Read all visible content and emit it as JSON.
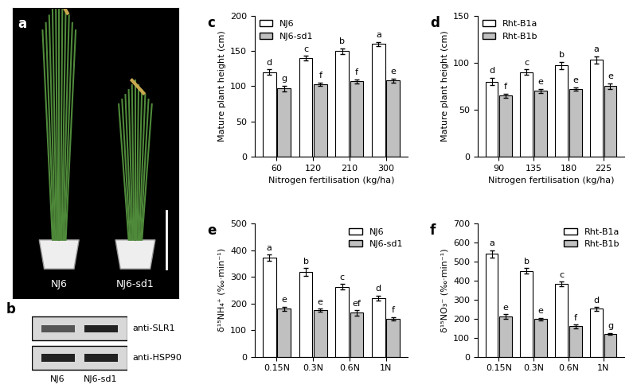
{
  "panels": {
    "a": {
      "panel": "a",
      "image_labels": [
        "NJ6",
        "NJ6-sd1"
      ]
    },
    "b": {
      "panel": "b",
      "blot_rows": [
        "anti-SLR1",
        "anti-HSP90"
      ],
      "lanes": [
        "NJ6",
        "NJ6-sd1"
      ]
    }
  },
  "chart_data": [
    {
      "type": "bar",
      "panel": "c",
      "x_label": "Nitrogen fertilisation (kg/ha)",
      "y_label": "Mature plant height (cm)",
      "categories": [
        "60",
        "120",
        "210",
        "300"
      ],
      "ylim": [
        0,
        200
      ],
      "yticks": [
        0,
        50,
        100,
        150,
        200
      ],
      "legend": "upper left",
      "series": [
        {
          "name": "NJ6",
          "color": "#ffffff",
          "values": [
            120,
            140,
            150,
            160
          ],
          "errors": [
            4,
            3,
            4,
            3
          ],
          "letters": [
            "d",
            "c",
            "b",
            "a"
          ]
        },
        {
          "name": "NJ6-sd1",
          "color": "#c0c0c0",
          "values": [
            97,
            103,
            107,
            108
          ],
          "errors": [
            4,
            2,
            3,
            3
          ],
          "letters": [
            "g",
            "f",
            "f",
            "e"
          ]
        }
      ]
    },
    {
      "type": "bar",
      "panel": "d",
      "x_label": "Nitrogen fertilisation (kg/ha)",
      "y_label": "Mature plant height (cm)",
      "categories": [
        "90",
        "135",
        "180",
        "225"
      ],
      "ylim": [
        0,
        150
      ],
      "yticks": [
        0,
        50,
        100,
        150
      ],
      "legend": "upper left",
      "series": [
        {
          "name": "Rht-B1a",
          "color": "#ffffff",
          "values": [
            80,
            90,
            97,
            103
          ],
          "errors": [
            4,
            3,
            4,
            4
          ],
          "letters": [
            "d",
            "c",
            "b",
            "a"
          ]
        },
        {
          "name": "Rht-B1b",
          "color": "#c0c0c0",
          "values": [
            65,
            70,
            72,
            75
          ],
          "errors": [
            2,
            2,
            2,
            3
          ],
          "letters": [
            "f",
            "e",
            "e",
            "e"
          ]
        }
      ]
    },
    {
      "type": "bar",
      "panel": "e",
      "y_label": "δ¹⁵NH₄⁺ (‰·min⁻¹)",
      "categories": [
        "0.15N",
        "0.3N",
        "0.6N",
        "1N"
      ],
      "ylim": [
        0,
        500
      ],
      "yticks": [
        0,
        100,
        200,
        300,
        400,
        500
      ],
      "legend": "upper right",
      "series": [
        {
          "name": "NJ6",
          "color": "#ffffff",
          "values": [
            372,
            318,
            262,
            220
          ],
          "errors": [
            12,
            15,
            10,
            10
          ],
          "letters": [
            "a",
            "b",
            "c",
            "d"
          ]
        },
        {
          "name": "NJ6-sd1",
          "color": "#c0c0c0",
          "values": [
            180,
            175,
            165,
            143
          ],
          "errors": [
            8,
            6,
            10,
            6
          ],
          "letters": [
            "e",
            "e",
            "ef",
            "f"
          ]
        }
      ]
    },
    {
      "type": "bar",
      "panel": "f",
      "y_label": "δ¹⁵NO₃⁻ (‰·min⁻¹)",
      "categories": [
        "0.15N",
        "0.3N",
        "0.6N",
        "1N"
      ],
      "ylim": [
        0,
        700
      ],
      "yticks": [
        0,
        100,
        200,
        300,
        400,
        500,
        600,
        700
      ],
      "legend": "upper right",
      "series": [
        {
          "name": "Rht-B1a",
          "color": "#ffffff",
          "values": [
            540,
            450,
            383,
            252
          ],
          "errors": [
            20,
            15,
            12,
            10
          ],
          "letters": [
            "a",
            "b",
            "c",
            "d"
          ]
        },
        {
          "name": "Rht-B1b",
          "color": "#c0c0c0",
          "values": [
            210,
            197,
            160,
            120
          ],
          "errors": [
            12,
            8,
            10,
            5
          ],
          "letters": [
            "e",
            "e",
            "f",
            "g"
          ]
        }
      ]
    }
  ]
}
